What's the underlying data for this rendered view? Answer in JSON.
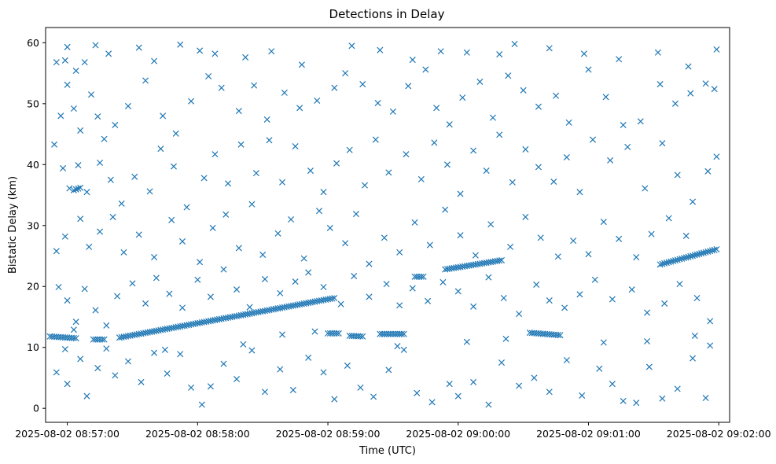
{
  "chart_data": {
    "type": "scatter",
    "title": "Detections in Delay",
    "xlabel": "Time (UTC)",
    "ylabel": "Bistatic Delay (km)",
    "marker": "x",
    "color": "#1f77b4",
    "grid": false,
    "legend": "none",
    "x_ticks": [
      "2025-08-02 08:57:00",
      "2025-08-02 08:58:00",
      "2025-08-02 08:59:00",
      "2025-08-02 09:00:00",
      "2025-08-02 09:01:00",
      "2025-08-02 09:02:00"
    ],
    "xlim": [
      "2025-08-02 08:56:50",
      "2025-08-02 09:02:05"
    ],
    "y_ticks": [
      0,
      10,
      20,
      30,
      40,
      50,
      60
    ],
    "ylim": [
      -2.3,
      62.5
    ],
    "tracks": [
      {
        "x_start": "2025-08-02 08:56:52",
        "x_end": "2025-08-02 08:57:04",
        "y_start": 11.8,
        "y_end": 11.5
      },
      {
        "x_start": "2025-08-02 08:57:12",
        "x_end": "2025-08-02 08:57:17",
        "y_start": 11.3,
        "y_end": 11.3
      },
      {
        "x_start": "2025-08-02 08:57:24",
        "x_end": "2025-08-02 08:59:03",
        "y_start": 11.6,
        "y_end": 18.1
      },
      {
        "x_start": "2025-08-02 08:59:00",
        "x_end": "2025-08-02 08:59:05",
        "y_start": 12.3,
        "y_end": 12.3
      },
      {
        "x_start": "2025-08-02 08:59:10",
        "x_end": "2025-08-02 08:59:16",
        "y_start": 11.9,
        "y_end": 11.8
      },
      {
        "x_start": "2025-08-02 08:59:24",
        "x_end": "2025-08-02 08:59:35",
        "y_start": 12.2,
        "y_end": 12.2
      },
      {
        "x_start": "2025-08-02 08:59:40",
        "x_end": "2025-08-02 08:59:44",
        "y_start": 21.6,
        "y_end": 21.6
      },
      {
        "x_start": "2025-08-02 08:59:54",
        "x_end": "2025-08-02 09:00:20",
        "y_start": 22.8,
        "y_end": 24.3
      },
      {
        "x_start": "2025-08-02 09:00:33",
        "x_end": "2025-08-02 09:00:47",
        "y_start": 12.4,
        "y_end": 12.0
      },
      {
        "x_start": "2025-08-02 09:01:33",
        "x_end": "2025-08-02 09:01:59",
        "y_start": 23.6,
        "y_end": 26.1
      },
      {
        "x_start": "2025-08-02 08:57:03",
        "x_end": "2025-08-02 08:57:06",
        "y_start": 35.8,
        "y_end": 36.2
      }
    ],
    "scatter": [
      [
        "2025-08-02 08:56:55",
        56.8
      ],
      [
        "2025-08-02 08:56:59",
        57.1
      ],
      [
        "2025-08-02 08:57:00",
        59.3
      ],
      [
        "2025-08-02 08:57:04",
        55.4
      ],
      [
        "2025-08-02 08:57:08",
        56.8
      ],
      [
        "2025-08-02 08:57:13",
        59.6
      ],
      [
        "2025-08-02 08:57:19",
        58.2
      ],
      [
        "2025-08-02 08:57:33",
        59.2
      ],
      [
        "2025-08-02 08:57:40",
        57.0
      ],
      [
        "2025-08-02 08:57:52",
        59.7
      ],
      [
        "2025-08-02 08:58:01",
        58.7
      ],
      [
        "2025-08-02 08:58:08",
        58.2
      ],
      [
        "2025-08-02 08:58:22",
        57.6
      ],
      [
        "2025-08-02 08:58:34",
        58.6
      ],
      [
        "2025-08-02 08:58:48",
        56.4
      ],
      [
        "2025-08-02 08:59:11",
        59.5
      ],
      [
        "2025-08-02 08:59:24",
        58.8
      ],
      [
        "2025-08-02 08:59:39",
        57.2
      ],
      [
        "2025-08-02 08:59:52",
        58.6
      ],
      [
        "2025-08-02 09:00:04",
        58.4
      ],
      [
        "2025-08-02 09:00:19",
        58.1
      ],
      [
        "2025-08-02 09:00:26",
        59.8
      ],
      [
        "2025-08-02 09:00:42",
        59.1
      ],
      [
        "2025-08-02 09:00:58",
        58.2
      ],
      [
        "2025-08-02 09:01:14",
        57.3
      ],
      [
        "2025-08-02 09:01:32",
        58.4
      ],
      [
        "2025-08-02 09:01:46",
        56.1
      ],
      [
        "2025-08-02 09:01:59",
        58.9
      ],
      [
        "2025-08-02 08:56:54",
        43.3
      ],
      [
        "2025-08-02 08:56:57",
        48.0
      ],
      [
        "2025-08-02 08:57:00",
        53.1
      ],
      [
        "2025-08-02 08:57:03",
        49.2
      ],
      [
        "2025-08-02 08:57:06",
        45.6
      ],
      [
        "2025-08-02 08:57:11",
        51.5
      ],
      [
        "2025-08-02 08:57:14",
        47.9
      ],
      [
        "2025-08-02 08:57:17",
        44.2
      ],
      [
        "2025-08-02 08:57:22",
        46.5
      ],
      [
        "2025-08-02 08:57:28",
        49.6
      ],
      [
        "2025-08-02 08:57:36",
        53.8
      ],
      [
        "2025-08-02 08:57:44",
        48.0
      ],
      [
        "2025-08-02 08:57:50",
        45.1
      ],
      [
        "2025-08-02 08:57:57",
        50.4
      ],
      [
        "2025-08-02 08:58:05",
        54.5
      ],
      [
        "2025-08-02 08:58:11",
        52.6
      ],
      [
        "2025-08-02 08:58:19",
        48.8
      ],
      [
        "2025-08-02 08:58:26",
        53.0
      ],
      [
        "2025-08-02 08:58:32",
        47.4
      ],
      [
        "2025-08-02 08:58:40",
        51.8
      ],
      [
        "2025-08-02 08:58:47",
        49.3
      ],
      [
        "2025-08-02 08:58:55",
        50.5
      ],
      [
        "2025-08-02 08:59:03",
        52.6
      ],
      [
        "2025-08-02 08:59:08",
        55.0
      ],
      [
        "2025-08-02 08:59:16",
        53.2
      ],
      [
        "2025-08-02 08:59:23",
        50.1
      ],
      [
        "2025-08-02 08:59:30",
        48.7
      ],
      [
        "2025-08-02 08:59:37",
        52.9
      ],
      [
        "2025-08-02 08:59:45",
        55.6
      ],
      [
        "2025-08-02 08:59:50",
        49.3
      ],
      [
        "2025-08-02 08:59:56",
        46.6
      ],
      [
        "2025-08-02 09:00:02",
        51.0
      ],
      [
        "2025-08-02 09:00:10",
        53.6
      ],
      [
        "2025-08-02 09:00:16",
        47.7
      ],
      [
        "2025-08-02 09:00:23",
        54.6
      ],
      [
        "2025-08-02 09:00:30",
        52.2
      ],
      [
        "2025-08-02 09:00:37",
        49.5
      ],
      [
        "2025-08-02 09:00:45",
        51.3
      ],
      [
        "2025-08-02 09:00:51",
        46.9
      ],
      [
        "2025-08-02 09:01:00",
        55.6
      ],
      [
        "2025-08-02 09:01:08",
        51.1
      ],
      [
        "2025-08-02 09:01:16",
        46.5
      ],
      [
        "2025-08-02 09:01:24",
        47.1
      ],
      [
        "2025-08-02 09:01:33",
        53.2
      ],
      [
        "2025-08-02 09:01:40",
        50.0
      ],
      [
        "2025-08-02 09:01:47",
        51.7
      ],
      [
        "2025-08-02 09:01:54",
        53.3
      ],
      [
        "2025-08-02 09:01:58",
        52.4
      ],
      [
        "2025-08-02 08:56:58",
        39.4
      ],
      [
        "2025-08-02 08:57:01",
        36.1
      ],
      [
        "2025-08-02 08:57:05",
        39.9
      ],
      [
        "2025-08-02 08:57:09",
        35.5
      ],
      [
        "2025-08-02 08:57:15",
        40.3
      ],
      [
        "2025-08-02 08:57:20",
        37.5
      ],
      [
        "2025-08-02 08:57:25",
        33.6
      ],
      [
        "2025-08-02 08:57:31",
        38.0
      ],
      [
        "2025-08-02 08:57:38",
        35.6
      ],
      [
        "2025-08-02 08:57:43",
        42.6
      ],
      [
        "2025-08-02 08:57:49",
        39.7
      ],
      [
        "2025-08-02 08:57:55",
        33.0
      ],
      [
        "2025-08-02 08:58:03",
        37.8
      ],
      [
        "2025-08-02 08:58:08",
        41.7
      ],
      [
        "2025-08-02 08:58:14",
        36.9
      ],
      [
        "2025-08-02 08:58:20",
        43.3
      ],
      [
        "2025-08-02 08:58:27",
        38.6
      ],
      [
        "2025-08-02 08:58:33",
        44.0
      ],
      [
        "2025-08-02 08:58:39",
        37.1
      ],
      [
        "2025-08-02 08:58:45",
        43.0
      ],
      [
        "2025-08-02 08:58:52",
        39.0
      ],
      [
        "2025-08-02 08:58:58",
        35.5
      ],
      [
        "2025-08-02 08:59:04",
        40.2
      ],
      [
        "2025-08-02 08:59:10",
        42.4
      ],
      [
        "2025-08-02 08:59:17",
        36.6
      ],
      [
        "2025-08-02 08:59:22",
        44.1
      ],
      [
        "2025-08-02 08:59:28",
        38.7
      ],
      [
        "2025-08-02 08:59:36",
        41.7
      ],
      [
        "2025-08-02 08:59:43",
        37.6
      ],
      [
        "2025-08-02 08:59:49",
        43.6
      ],
      [
        "2025-08-02 08:59:55",
        40.0
      ],
      [
        "2025-08-02 09:00:01",
        35.2
      ],
      [
        "2025-08-02 09:00:07",
        42.3
      ],
      [
        "2025-08-02 09:00:13",
        39.0
      ],
      [
        "2025-08-02 09:00:19",
        44.9
      ],
      [
        "2025-08-02 09:00:25",
        37.1
      ],
      [
        "2025-08-02 09:00:31",
        42.5
      ],
      [
        "2025-08-02 09:00:37",
        39.6
      ],
      [
        "2025-08-02 09:00:44",
        37.2
      ],
      [
        "2025-08-02 09:00:50",
        41.2
      ],
      [
        "2025-08-02 09:00:56",
        35.5
      ],
      [
        "2025-08-02 09:01:02",
        44.1
      ],
      [
        "2025-08-02 09:01:10",
        40.7
      ],
      [
        "2025-08-02 09:01:18",
        42.9
      ],
      [
        "2025-08-02 09:01:26",
        36.1
      ],
      [
        "2025-08-02 09:01:34",
        43.5
      ],
      [
        "2025-08-02 09:01:41",
        38.3
      ],
      [
        "2025-08-02 09:01:48",
        33.9
      ],
      [
        "2025-08-02 09:01:55",
        38.9
      ],
      [
        "2025-08-02 09:01:59",
        41.3
      ],
      [
        "2025-08-02 08:56:55",
        25.8
      ],
      [
        "2025-08-02 08:56:59",
        28.2
      ],
      [
        "2025-08-02 08:57:06",
        31.1
      ],
      [
        "2025-08-02 08:57:10",
        26.5
      ],
      [
        "2025-08-02 08:57:15",
        29.0
      ],
      [
        "2025-08-02 08:57:21",
        31.4
      ],
      [
        "2025-08-02 08:57:26",
        25.6
      ],
      [
        "2025-08-02 08:57:33",
        28.5
      ],
      [
        "2025-08-02 08:57:40",
        24.8
      ],
      [
        "2025-08-02 08:57:48",
        30.9
      ],
      [
        "2025-08-02 08:57:53",
        27.4
      ],
      [
        "2025-08-02 08:58:01",
        24.0
      ],
      [
        "2025-08-02 08:58:07",
        29.6
      ],
      [
        "2025-08-02 08:58:13",
        31.8
      ],
      [
        "2025-08-02 08:58:19",
        26.3
      ],
      [
        "2025-08-02 08:58:25",
        33.5
      ],
      [
        "2025-08-02 08:58:30",
        25.2
      ],
      [
        "2025-08-02 08:58:37",
        28.7
      ],
      [
        "2025-08-02 08:58:43",
        31.0
      ],
      [
        "2025-08-02 08:58:49",
        24.6
      ],
      [
        "2025-08-02 08:58:56",
        32.4
      ],
      [
        "2025-08-02 08:59:01",
        29.6
      ],
      [
        "2025-08-02 08:59:08",
        27.1
      ],
      [
        "2025-08-02 08:59:13",
        31.9
      ],
      [
        "2025-08-02 08:59:19",
        23.7
      ],
      [
        "2025-08-02 08:59:26",
        28.0
      ],
      [
        "2025-08-02 08:59:33",
        25.6
      ],
      [
        "2025-08-02 08:59:40",
        30.5
      ],
      [
        "2025-08-02 08:59:47",
        26.8
      ],
      [
        "2025-08-02 08:59:54",
        32.6
      ],
      [
        "2025-08-02 09:00:01",
        28.4
      ],
      [
        "2025-08-02 09:00:08",
        25.1
      ],
      [
        "2025-08-02 09:00:15",
        30.2
      ],
      [
        "2025-08-02 09:00:24",
        26.5
      ],
      [
        "2025-08-02 09:00:31",
        31.4
      ],
      [
        "2025-08-02 09:00:38",
        28.0
      ],
      [
        "2025-08-02 09:00:46",
        24.9
      ],
      [
        "2025-08-02 09:00:53",
        27.5
      ],
      [
        "2025-08-02 09:01:00",
        25.3
      ],
      [
        "2025-08-02 09:01:07",
        30.6
      ],
      [
        "2025-08-02 09:01:14",
        27.8
      ],
      [
        "2025-08-02 09:01:22",
        24.8
      ],
      [
        "2025-08-02 09:01:29",
        28.6
      ],
      [
        "2025-08-02 09:01:37",
        31.2
      ],
      [
        "2025-08-02 09:01:45",
        28.3
      ],
      [
        "2025-08-02 08:56:56",
        19.9
      ],
      [
        "2025-08-02 08:57:00",
        17.7
      ],
      [
        "2025-08-02 08:57:04",
        14.2
      ],
      [
        "2025-08-02 08:57:08",
        19.6
      ],
      [
        "2025-08-02 08:57:13",
        16.1
      ],
      [
        "2025-08-02 08:57:18",
        13.6
      ],
      [
        "2025-08-02 08:57:23",
        18.4
      ],
      [
        "2025-08-02 08:57:30",
        20.5
      ],
      [
        "2025-08-02 08:57:36",
        17.2
      ],
      [
        "2025-08-02 08:57:41",
        21.4
      ],
      [
        "2025-08-02 08:57:47",
        18.8
      ],
      [
        "2025-08-02 08:57:53",
        16.5
      ],
      [
        "2025-08-02 08:58:00",
        21.1
      ],
      [
        "2025-08-02 08:58:06",
        18.3
      ],
      [
        "2025-08-02 08:58:12",
        22.8
      ],
      [
        "2025-08-02 08:58:18",
        19.5
      ],
      [
        "2025-08-02 08:58:24",
        16.6
      ],
      [
        "2025-08-02 08:58:31",
        21.2
      ],
      [
        "2025-08-02 08:58:38",
        18.9
      ],
      [
        "2025-08-02 08:58:45",
        20.8
      ],
      [
        "2025-08-02 08:58:51",
        22.3
      ],
      [
        "2025-08-02 08:58:58",
        19.9
      ],
      [
        "2025-08-02 08:59:06",
        17.1
      ],
      [
        "2025-08-02 08:59:12",
        21.7
      ],
      [
        "2025-08-02 08:59:19",
        18.3
      ],
      [
        "2025-08-02 08:59:27",
        20.4
      ],
      [
        "2025-08-02 08:59:33",
        16.9
      ],
      [
        "2025-08-02 08:59:39",
        19.7
      ],
      [
        "2025-08-02 08:59:46",
        17.6
      ],
      [
        "2025-08-02 08:59:53",
        20.7
      ],
      [
        "2025-08-02 09:00:00",
        19.2
      ],
      [
        "2025-08-02 09:00:07",
        16.7
      ],
      [
        "2025-08-02 09:00:14",
        21.5
      ],
      [
        "2025-08-02 09:00:21",
        18.1
      ],
      [
        "2025-08-02 09:00:28",
        15.5
      ],
      [
        "2025-08-02 09:00:36",
        20.3
      ],
      [
        "2025-08-02 09:00:42",
        17.7
      ],
      [
        "2025-08-02 09:00:49",
        16.5
      ],
      [
        "2025-08-02 09:00:56",
        18.7
      ],
      [
        "2025-08-02 09:01:03",
        21.1
      ],
      [
        "2025-08-02 09:01:11",
        17.9
      ],
      [
        "2025-08-02 09:01:20",
        19.5
      ],
      [
        "2025-08-02 09:01:27",
        15.7
      ],
      [
        "2025-08-02 09:01:35",
        17.2
      ],
      [
        "2025-08-02 09:01:42",
        20.4
      ],
      [
        "2025-08-02 09:01:50",
        18.1
      ],
      [
        "2025-08-02 09:01:56",
        14.3
      ],
      [
        "2025-08-02 08:56:55",
        5.9
      ],
      [
        "2025-08-02 08:56:59",
        9.7
      ],
      [
        "2025-08-02 08:57:00",
        4.0
      ],
      [
        "2025-08-02 08:57:06",
        8.1
      ],
      [
        "2025-08-02 08:57:09",
        2.0
      ],
      [
        "2025-08-02 08:57:14",
        6.6
      ],
      [
        "2025-08-02 08:57:18",
        9.8
      ],
      [
        "2025-08-02 08:57:22",
        5.4
      ],
      [
        "2025-08-02 08:57:28",
        7.7
      ],
      [
        "2025-08-02 08:57:34",
        4.3
      ],
      [
        "2025-08-02 08:57:40",
        9.1
      ],
      [
        "2025-08-02 08:57:46",
        5.7
      ],
      [
        "2025-08-02 08:57:52",
        8.9
      ],
      [
        "2025-08-02 08:57:57",
        3.4
      ],
      [
        "2025-08-02 08:58:02",
        0.6
      ],
      [
        "2025-08-02 08:58:06",
        3.6
      ],
      [
        "2025-08-02 08:58:12",
        7.3
      ],
      [
        "2025-08-02 08:58:18",
        4.8
      ],
      [
        "2025-08-02 08:58:25",
        9.5
      ],
      [
        "2025-08-02 08:58:31",
        2.7
      ],
      [
        "2025-08-02 08:58:38",
        6.4
      ],
      [
        "2025-08-02 08:58:44",
        3.0
      ],
      [
        "2025-08-02 08:58:51",
        8.3
      ],
      [
        "2025-08-02 08:58:58",
        5.9
      ],
      [
        "2025-08-02 08:59:03",
        1.5
      ],
      [
        "2025-08-02 08:59:09",
        7.0
      ],
      [
        "2025-08-02 08:59:15",
        3.4
      ],
      [
        "2025-08-02 08:59:21",
        1.9
      ],
      [
        "2025-08-02 08:59:28",
        6.3
      ],
      [
        "2025-08-02 08:59:35",
        9.6
      ],
      [
        "2025-08-02 08:59:41",
        2.5
      ],
      [
        "2025-08-02 08:59:48",
        1.0
      ],
      [
        "2025-08-02 08:59:56",
        4.0
      ],
      [
        "2025-08-02 09:00:00",
        2.0
      ],
      [
        "2025-08-02 09:00:07",
        4.3
      ],
      [
        "2025-08-02 09:00:14",
        0.6
      ],
      [
        "2025-08-02 09:00:20",
        7.5
      ],
      [
        "2025-08-02 09:00:28",
        3.7
      ],
      [
        "2025-08-02 09:00:35",
        5.0
      ],
      [
        "2025-08-02 09:00:42",
        2.7
      ],
      [
        "2025-08-02 09:00:50",
        7.9
      ],
      [
        "2025-08-02 09:00:57",
        2.1
      ],
      [
        "2025-08-02 09:01:05",
        6.5
      ],
      [
        "2025-08-02 09:01:11",
        4.0
      ],
      [
        "2025-08-02 09:01:16",
        1.2
      ],
      [
        "2025-08-02 09:01:22",
        0.9
      ],
      [
        "2025-08-02 09:01:28",
        6.8
      ],
      [
        "2025-08-02 09:01:34",
        1.6
      ],
      [
        "2025-08-02 09:01:41",
        3.2
      ],
      [
        "2025-08-02 09:01:48",
        8.2
      ],
      [
        "2025-08-02 09:01:54",
        1.7
      ],
      [
        "2025-08-02 08:57:03",
        12.9
      ],
      [
        "2025-08-02 08:57:45",
        9.6
      ],
      [
        "2025-08-02 08:58:21",
        10.5
      ],
      [
        "2025-08-02 08:58:39",
        12.1
      ],
      [
        "2025-08-02 08:58:54",
        12.6
      ],
      [
        "2025-08-02 08:59:32",
        10.2
      ],
      [
        "2025-08-02 09:00:04",
        10.9
      ],
      [
        "2025-08-02 09:00:22",
        11.4
      ],
      [
        "2025-08-02 09:01:07",
        10.8
      ],
      [
        "2025-08-02 09:01:27",
        11.0
      ],
      [
        "2025-08-02 09:01:49",
        11.9
      ],
      [
        "2025-08-02 09:01:56",
        10.3
      ]
    ]
  }
}
